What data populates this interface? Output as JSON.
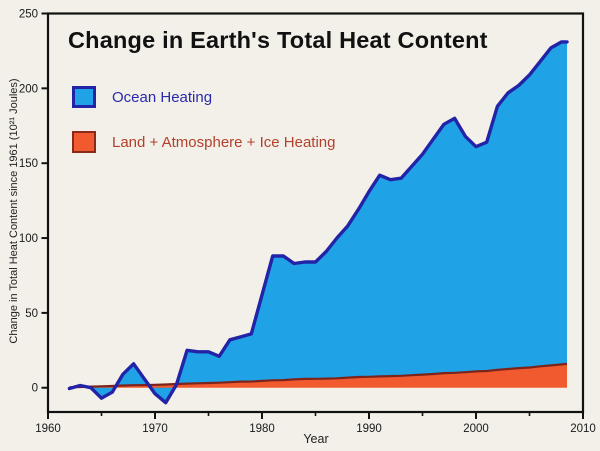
{
  "title": "Change in Earth's Total Heat Content",
  "legend": {
    "ocean_label": "Ocean Heating",
    "land_label": "Land + Atmosphere + Ice Heating"
  },
  "axes": {
    "y_label": "Change in Total Heat Content since 1961 (10²¹ Joules)",
    "x_label": "Year"
  },
  "colors": {
    "background": "#f2f0e9",
    "ocean_fill": "#1fa3e6",
    "ocean_line": "#2323a8",
    "land_fill": "#f15a2e",
    "land_line": "#7c241c",
    "frame": "#111111",
    "tick_text": "#1a1a1a"
  },
  "chart_data": {
    "type": "area",
    "title": "Change in Earth's Total Heat Content",
    "xlabel": "Year",
    "ylabel": "Change in Total Heat Content since 1961 (10²¹ Joules)",
    "xlim": [
      1960,
      2010
    ],
    "ylim": [
      -16.2,
      250
    ],
    "x_ticks": [
      1960,
      1970,
      1980,
      1990,
      2000,
      2010
    ],
    "x_minor_ticks": [
      1965,
      1975,
      1985,
      1995,
      2005
    ],
    "y_ticks": [
      0,
      50,
      100,
      150,
      200,
      250
    ],
    "grid": false,
    "legend_position": "upper-left-inside",
    "stacking": "stacked (values are top edge of each area)",
    "x": [
      1962,
      1963,
      1964,
      1965,
      1966,
      1967,
      1968,
      1969,
      1970,
      1971,
      1972,
      1973,
      1974,
      1975,
      1976,
      1977,
      1978,
      1979,
      1980,
      1981,
      1982,
      1983,
      1984,
      1985,
      1986,
      1987,
      1988,
      1989,
      1990,
      1991,
      1992,
      1993,
      1994,
      1995,
      1996,
      1997,
      1998,
      1999,
      2000,
      2001,
      2002,
      2003,
      2004,
      2005,
      2006,
      2007,
      2008,
      2008.5
    ],
    "series": [
      {
        "name": "Ocean Heating",
        "fill_color": "#1fa3e6",
        "line_color": "#2323a8",
        "values": [
          -0.5,
          1.5,
          0,
          -7,
          -3,
          9,
          16,
          6,
          -4,
          -10,
          2,
          25,
          24,
          24,
          21,
          32,
          34,
          36,
          62,
          88,
          88,
          83,
          84,
          84,
          91,
          100,
          108,
          119,
          131,
          142,
          139,
          140,
          148,
          156,
          166,
          176,
          180,
          168,
          161,
          164,
          188,
          197,
          202,
          209,
          218,
          227,
          231,
          231
        ]
      },
      {
        "name": "Land + Atmosphere + Ice Heating",
        "fill_color": "#f15a2e",
        "line_color": "#7c241c",
        "values": [
          0.3,
          0.5,
          0.8,
          1.0,
          1.2,
          1.5,
          1.7,
          1.8,
          2.0,
          2.2,
          2.5,
          2.8,
          3.0,
          3.2,
          3.4,
          3.7,
          4.1,
          4.2,
          4.6,
          5.0,
          5.1,
          5.6,
          5.9,
          6.0,
          6.1,
          6.3,
          6.8,
          7.2,
          7.3,
          7.6,
          7.8,
          8.0,
          8.4,
          8.8,
          9.2,
          9.8,
          10.0,
          10.4,
          10.9,
          11.2,
          11.9,
          12.5,
          13.1,
          13.5,
          14.3,
          14.9,
          15.6,
          16.0
        ]
      }
    ]
  }
}
